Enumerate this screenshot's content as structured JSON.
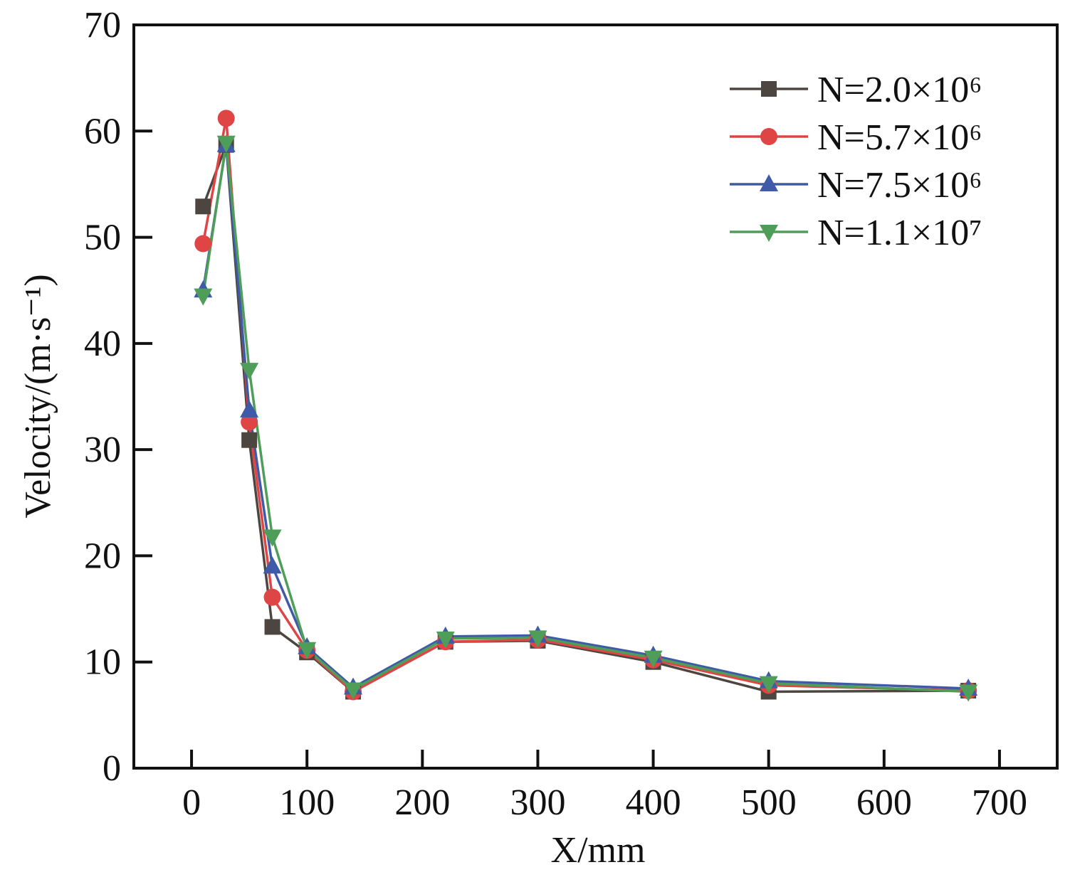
{
  "chart_data": {
    "type": "line",
    "x_label": "X/mm",
    "y_label": "Velocity/(m·s⁻¹)",
    "xlim": [
      -50,
      750
    ],
    "xticks": [
      0,
      100,
      200,
      300,
      400,
      500,
      600,
      700
    ],
    "ylim": [
      0,
      70
    ],
    "yticks": [
      0,
      10,
      20,
      30,
      40,
      50,
      60,
      70
    ],
    "legend": "upper right",
    "x": [
      10,
      30,
      50,
      70,
      100,
      140,
      220,
      300,
      400,
      500,
      673
    ],
    "series": [
      {
        "name": "N=2.0×10⁶",
        "color": "#4d4540",
        "marker": "square",
        "values": [
          52.9,
          58.7,
          30.9,
          13.3,
          10.9,
          7.2,
          11.9,
          12.0,
          10.0,
          7.2,
          7.3
        ]
      },
      {
        "name": "N=5.7×10⁶",
        "color": "#e04545",
        "marker": "circle",
        "values": [
          49.4,
          61.2,
          32.6,
          16.1,
          11.1,
          7.2,
          11.9,
          12.1,
          10.2,
          7.8,
          7.3
        ]
      },
      {
        "name": "N=7.5×10⁶",
        "color": "#3f5aa8",
        "marker": "triangle-up",
        "values": [
          45.0,
          58.7,
          33.7,
          19.0,
          11.4,
          7.6,
          12.4,
          12.5,
          10.6,
          8.2,
          7.5
        ]
      },
      {
        "name": "N=1.1×10⁷",
        "color": "#4e9e5a",
        "marker": "triangle-down",
        "values": [
          44.5,
          58.9,
          37.5,
          21.8,
          11.2,
          7.4,
          12.2,
          12.3,
          10.4,
          8.0,
          7.2
        ]
      }
    ]
  }
}
